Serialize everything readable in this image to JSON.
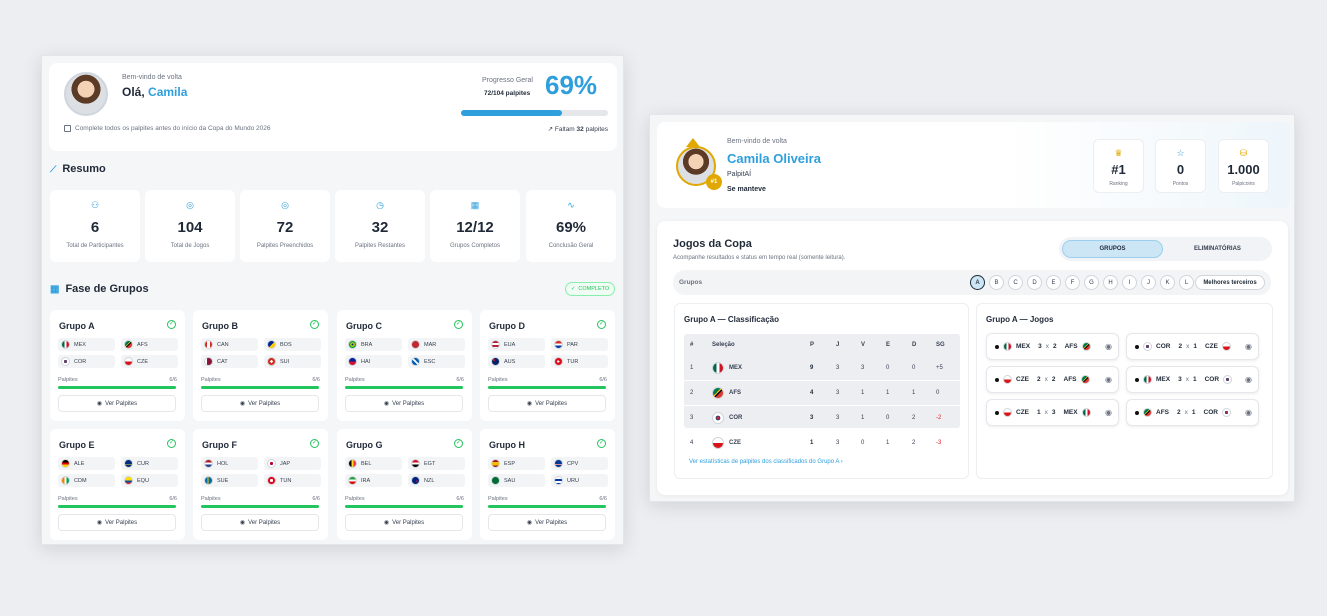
{
  "left": {
    "welcome": "Bem-vindo de volta",
    "greeting": "Olá,",
    "user": "Camila",
    "progress_label": "Progresso Geral",
    "progress_count": "72/104 palpites",
    "progress_pct": "69%",
    "progress_fraction": 0.69,
    "deadline": "Complete todos os palpites antes do início da Copa do Mundo 2026",
    "remaining_prefix": "Faltam",
    "remaining_num": "32",
    "remaining_suffix": "palpites",
    "summary_title": "Resumo",
    "stats": [
      {
        "value": "6",
        "label": "Total de Participantes"
      },
      {
        "value": "104",
        "label": "Total de Jogos"
      },
      {
        "value": "72",
        "label": "Palpites Preenchidos"
      },
      {
        "value": "32",
        "label": "Palpites Restantes"
      },
      {
        "value": "12/12",
        "label": "Grupos Completos"
      },
      {
        "value": "69%",
        "label": "Conclusão Geral"
      }
    ],
    "groups_title": "Fase de Grupos",
    "complete_badge": "COMPLETO",
    "palpites_label": "Palpites",
    "palpites_count": "6/6",
    "view_label": "Ver Palpites",
    "groups": [
      {
        "name": "Grupo A",
        "teams": [
          "MEX",
          "AFS",
          "COR",
          "CZE"
        ]
      },
      {
        "name": "Grupo B",
        "teams": [
          "CAN",
          "BOS",
          "CAT",
          "SUI"
        ]
      },
      {
        "name": "Grupo C",
        "teams": [
          "BRA",
          "MAR",
          "HAI",
          "ESC"
        ]
      },
      {
        "name": "Grupo D",
        "teams": [
          "EUA",
          "PAR",
          "AUS",
          "TUR"
        ]
      },
      {
        "name": "Grupo E",
        "teams": [
          "ALE",
          "CUR",
          "CDM",
          "EQU"
        ]
      },
      {
        "name": "Grupo F",
        "teams": [
          "HOL",
          "JAP",
          "SUE",
          "TUN"
        ]
      },
      {
        "name": "Grupo G",
        "teams": [
          "BEL",
          "EGT",
          "IRA",
          "NZL"
        ]
      },
      {
        "name": "Grupo H",
        "teams": [
          "ESP",
          "CPV",
          "SAU",
          "URU"
        ]
      }
    ]
  },
  "right": {
    "welcome": "Bem-vindo de volta",
    "user": "Camila Oliveira",
    "app": "PalpitAÍ",
    "status": "Se manteve",
    "rank_badge": "#1",
    "boxes": [
      {
        "value": "#1",
        "label": "Ranking"
      },
      {
        "value": "0",
        "label": "Pontos"
      },
      {
        "value": "1.000",
        "label": "Palpicoins"
      }
    ],
    "games_title": "Jogos da Copa",
    "games_sub": "Acompanhe resultados e status em tempo real (somente leitura).",
    "tab_groups": "GRUPOS",
    "tab_ko": "ELIMINATÓRIAS",
    "groups_label": "Grupos",
    "group_letters": [
      "A",
      "B",
      "C",
      "D",
      "E",
      "F",
      "G",
      "H",
      "I",
      "J",
      "K",
      "L"
    ],
    "best_thirds": "Melhores terceiros",
    "class_title": "Grupo A — Classificação",
    "headers": [
      "#",
      "Seleção",
      "P",
      "J",
      "V",
      "E",
      "D",
      "SG"
    ],
    "rows": [
      {
        "pos": "1",
        "team": "MEX",
        "p": "9",
        "j": "3",
        "v": "3",
        "e": "0",
        "d": "0",
        "sg": "+5"
      },
      {
        "pos": "2",
        "team": "AFS",
        "p": "4",
        "j": "3",
        "v": "1",
        "e": "1",
        "d": "1",
        "sg": "0"
      },
      {
        "pos": "3",
        "team": "COR",
        "p": "3",
        "j": "3",
        "v": "1",
        "e": "0",
        "d": "2",
        "sg": "-2"
      },
      {
        "pos": "4",
        "team": "CZE",
        "p": "1",
        "j": "3",
        "v": "0",
        "e": "1",
        "d": "2",
        "sg": "-3"
      }
    ],
    "stats_link": "Ver estatísticas de palpites dos classificados do Grupo A",
    "games_group_title": "Grupo A — Jogos",
    "matches": [
      {
        "home": "MEX",
        "hs": "3",
        "as": "2",
        "away": "AFS"
      },
      {
        "home": "COR",
        "hs": "2",
        "as": "1",
        "away": "CZE"
      },
      {
        "home": "CZE",
        "hs": "2",
        "as": "2",
        "away": "AFS"
      },
      {
        "home": "MEX",
        "hs": "3",
        "as": "1",
        "away": "COR"
      },
      {
        "home": "CZE",
        "hs": "1",
        "as": "3",
        "away": "MEX"
      },
      {
        "home": "AFS",
        "hs": "2",
        "as": "1",
        "away": "COR"
      }
    ],
    "x": "x"
  },
  "colors": {
    "accent": "#2e9fdc",
    "success": "#22c55e",
    "gold": "#e0a800"
  }
}
